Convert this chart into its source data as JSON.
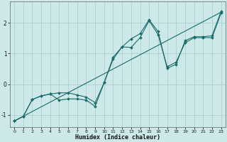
{
  "xlabel": "Humidex (Indice chaleur)",
  "xlim": [
    -0.5,
    23.5
  ],
  "ylim": [
    -1.4,
    2.7
  ],
  "background_color": "#cce8e8",
  "grid_color": "#aacccc",
  "line_color": "#1a6b6b",
  "series1": {
    "x": [
      0,
      1,
      2,
      3,
      4,
      5,
      6,
      7,
      8,
      9,
      10,
      11,
      12,
      13,
      14,
      15,
      16,
      17,
      18,
      19,
      20,
      21,
      22,
      23
    ],
    "y": [
      -1.2,
      -1.05,
      -0.5,
      -0.38,
      -0.32,
      -0.28,
      -0.28,
      -0.35,
      -0.42,
      -0.6,
      0.05,
      0.82,
      1.22,
      1.2,
      1.52,
      2.07,
      1.62,
      0.57,
      0.72,
      1.35,
      1.52,
      1.52,
      1.52,
      2.32
    ]
  },
  "series2": {
    "x": [
      0,
      1,
      2,
      3,
      4,
      5,
      6,
      7,
      8,
      9,
      10,
      11,
      12,
      13,
      14,
      15,
      16,
      17,
      18,
      19,
      20,
      21,
      22,
      23
    ],
    "y": [
      -1.2,
      -1.05,
      -0.5,
      -0.38,
      -0.32,
      -0.52,
      -0.48,
      -0.48,
      -0.52,
      -0.72,
      0.05,
      0.88,
      1.22,
      1.48,
      1.65,
      2.1,
      1.72,
      0.52,
      0.65,
      1.42,
      1.55,
      1.55,
      1.58,
      2.37
    ]
  },
  "series3": {
    "x": [
      0,
      23
    ],
    "y": [
      -1.2,
      2.35
    ]
  },
  "yticks": [
    -1,
    0,
    1,
    2
  ],
  "xticks": [
    0,
    1,
    2,
    3,
    4,
    5,
    6,
    7,
    8,
    9,
    10,
    11,
    12,
    13,
    14,
    15,
    16,
    17,
    18,
    19,
    20,
    21,
    22,
    23
  ]
}
